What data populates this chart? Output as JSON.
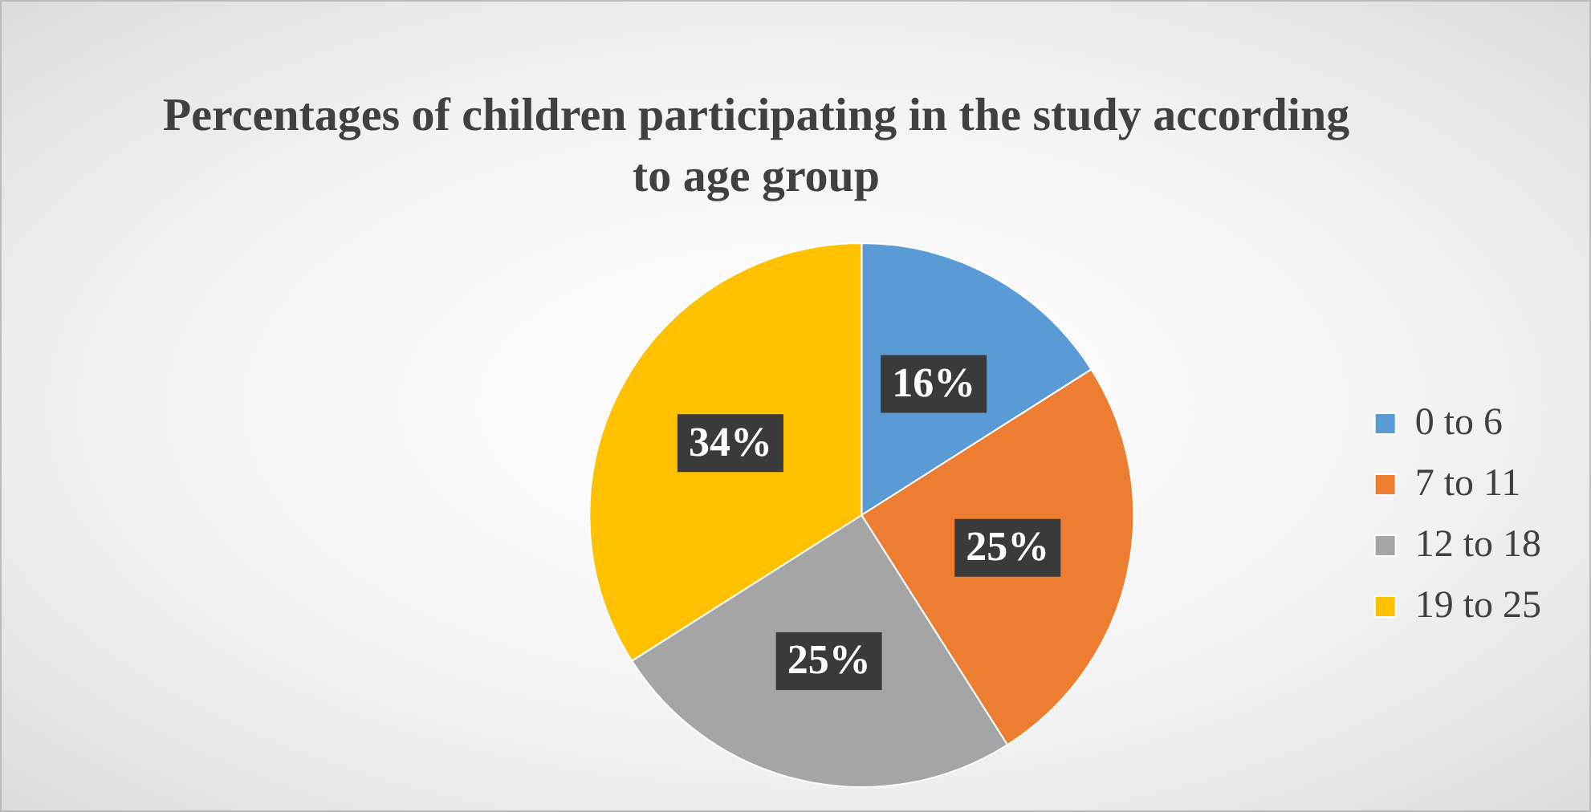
{
  "chart_data": {
    "type": "pie",
    "title": "Percentages of children participating in the study according to age group",
    "categories": [
      "0 to 6",
      "7 to 11",
      "12 to 18",
      "19 to 25"
    ],
    "values": [
      16,
      25,
      25,
      34
    ],
    "colors": [
      "#5b9bd5",
      "#ed7d31",
      "#a5a5a5",
      "#ffc000"
    ],
    "value_labels": [
      "16%",
      "25%",
      "25%",
      "34%"
    ],
    "legend": "right"
  }
}
